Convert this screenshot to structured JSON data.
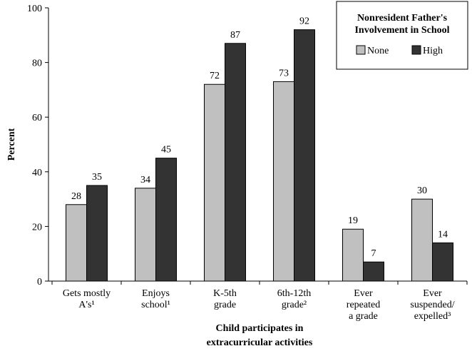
{
  "chart_data": {
    "type": "bar",
    "categories": [
      "Gets mostly\nA's¹",
      "Enjoys\nschool¹",
      "K-5th\ngrade",
      "6th-12th\ngrade²",
      "Ever\nrepeated\na grade",
      "Ever\nsuspended/\nexpelled³"
    ],
    "series": [
      {
        "name": "None",
        "color": "#c0c0c0",
        "values": [
          28,
          34,
          72,
          73,
          19,
          30
        ]
      },
      {
        "name": "High",
        "color": "#333333",
        "values": [
          35,
          45,
          87,
          92,
          7,
          14
        ]
      }
    ],
    "ylabel": "Percent",
    "xlabel": "Child participates in\nextracurricular activities",
    "legend_title": "Nonresident Father's\nInvolvement in School",
    "legend": "upper right",
    "ylim": [
      0,
      100
    ],
    "yticks": [
      0,
      20,
      40,
      60,
      80,
      100
    ]
  }
}
